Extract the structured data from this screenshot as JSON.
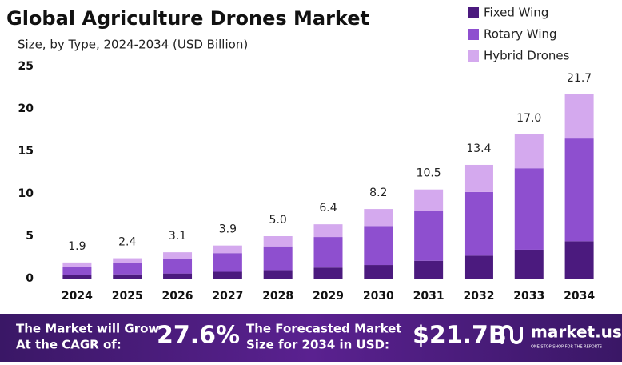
{
  "chart_data": {
    "type": "stacked_bar",
    "title": "Global Agriculture Drones Market",
    "subtitle": "Size, by Type, 2024-2034 (USD Billion)",
    "categories": [
      "2024",
      "2025",
      "2026",
      "2027",
      "2028",
      "2029",
      "2030",
      "2031",
      "2032",
      "2033",
      "2034"
    ],
    "series": [
      {
        "name": "Fixed Wing",
        "color": "#4b1a7e",
        "values": [
          0.4,
          0.5,
          0.6,
          0.8,
          1.0,
          1.3,
          1.6,
          2.1,
          2.7,
          3.4,
          4.4
        ]
      },
      {
        "name": "Rotary Wing",
        "color": "#8e4fcf",
        "values": [
          1.0,
          1.3,
          1.7,
          2.2,
          2.8,
          3.6,
          4.6,
          5.9,
          7.5,
          9.6,
          12.1
        ]
      },
      {
        "name": "Hybrid Drones",
        "color": "#d4a9ee",
        "values": [
          0.5,
          0.6,
          0.8,
          0.9,
          1.2,
          1.5,
          2.0,
          2.5,
          3.2,
          4.0,
          5.2
        ]
      }
    ],
    "totals": [
      1.9,
      2.4,
      3.1,
      3.9,
      5.0,
      6.4,
      8.2,
      10.5,
      13.4,
      17.0,
      21.7
    ],
    "total_labels": [
      "1.9",
      "2.4",
      "3.1",
      "3.9",
      "5.0",
      "6.4",
      "8.2",
      "10.5",
      "13.4",
      "17.0",
      "21.7"
    ],
    "ylim": [
      0,
      25
    ],
    "yticks": [
      0,
      5,
      10,
      15,
      20,
      25
    ],
    "grid": false,
    "legend": "top-right"
  },
  "footer": {
    "cagr_text": [
      "The Market will Grow",
      "At the CAGR of:"
    ],
    "cagr_value": "27.6%",
    "forecast_text": [
      "The Forecasted Market",
      "Size for 2034 in USD:"
    ],
    "forecast_value": "$21.7B",
    "brand": "market.us",
    "tagline": "ONE STOP SHOP FOR THE REPORTS"
  }
}
